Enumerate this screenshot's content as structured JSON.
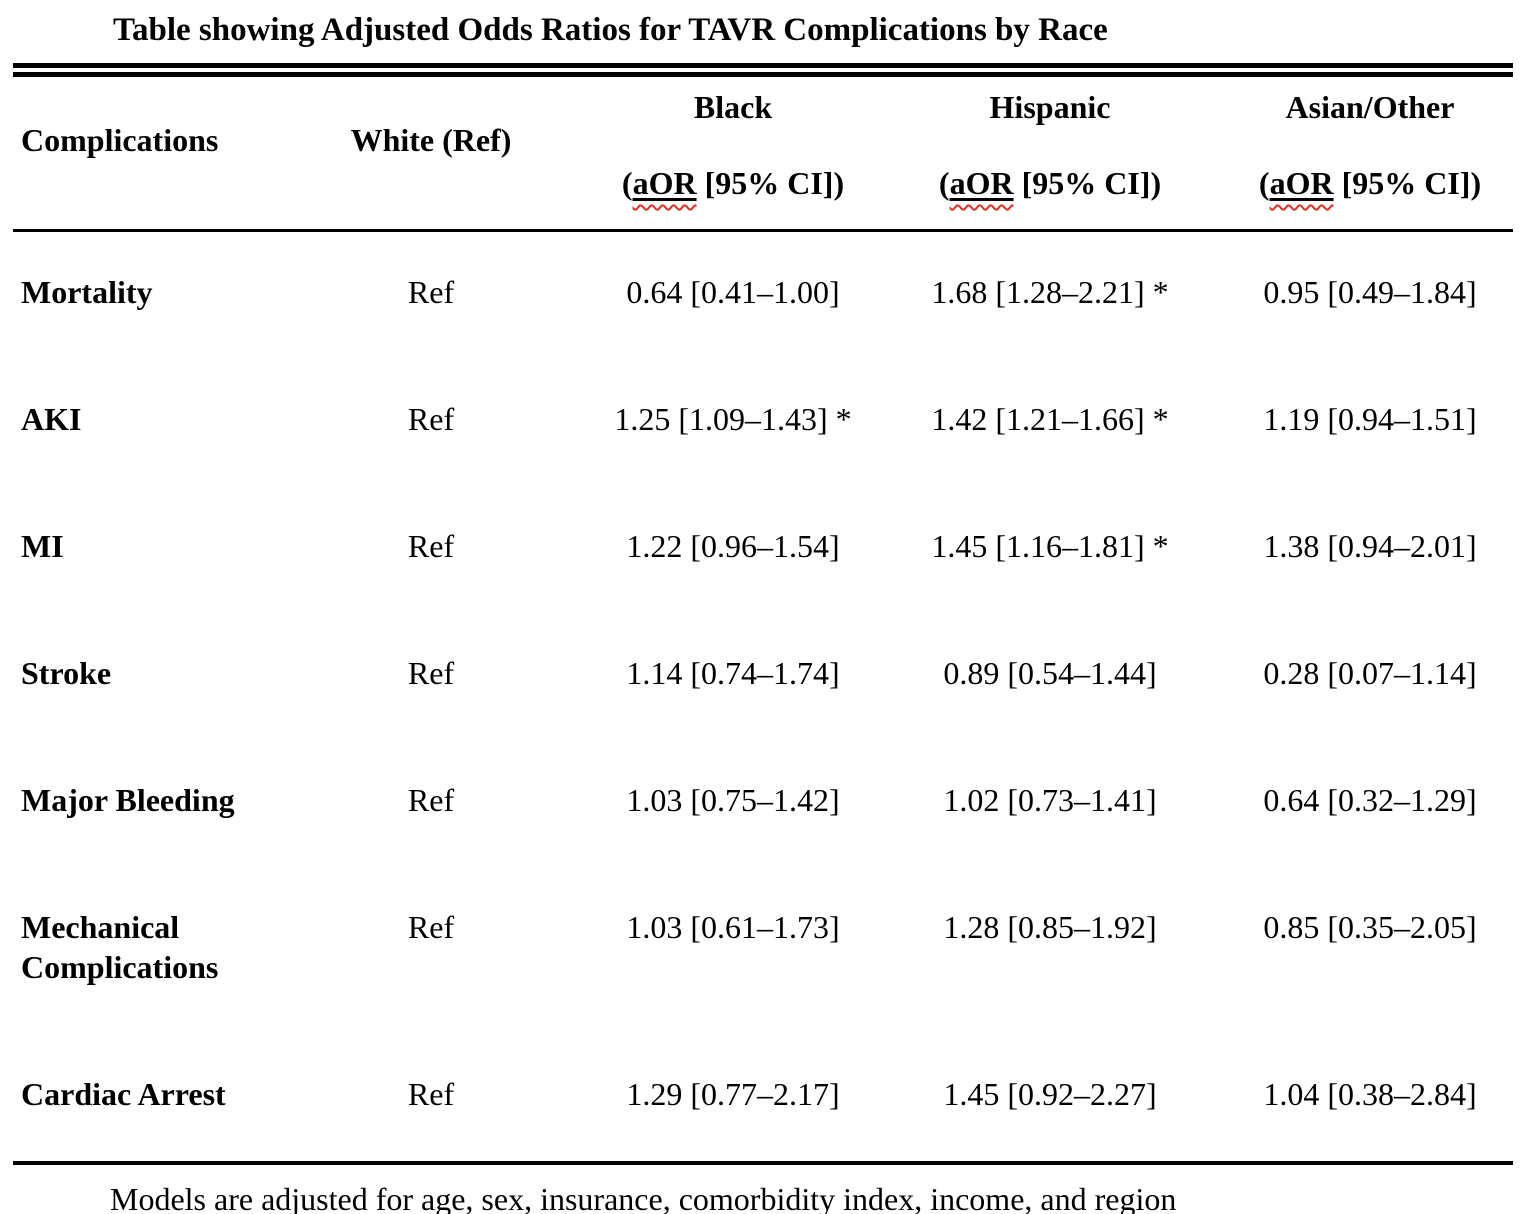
{
  "title": "Table showing Adjusted Odds Ratios for TAVR Complications by Race",
  "table": {
    "header": {
      "complications": "Complications",
      "white": "White (Ref)",
      "race_groups": [
        {
          "name": "Black",
          "measure_open": "(",
          "measure_term": "aOR",
          "measure_rest": " [95% CI])"
        },
        {
          "name": "Hispanic",
          "measure_open": "(",
          "measure_term": "aOR",
          "measure_rest": " [95% CI])"
        },
        {
          "name": "Asian/Other",
          "measure_open": "(",
          "measure_term": "aOR",
          "measure_rest": " [95% CI])"
        }
      ]
    },
    "rows": [
      {
        "complication": "Mortality",
        "white": "Ref",
        "black": "0.64 [0.41–1.00]",
        "hispanic": "1.68 [1.28–2.21] *",
        "asian_other": "0.95 [0.49–1.84]"
      },
      {
        "complication": "AKI",
        "white": "Ref",
        "black": "1.25 [1.09–1.43] *",
        "hispanic": "1.42 [1.21–1.66] *",
        "asian_other": "1.19 [0.94–1.51]"
      },
      {
        "complication": "MI",
        "white": "Ref",
        "black": "1.22 [0.96–1.54]",
        "hispanic": "1.45 [1.16–1.81] *",
        "asian_other": "1.38 [0.94–2.01]"
      },
      {
        "complication": "Stroke",
        "white": "Ref",
        "black": "1.14 [0.74–1.74]",
        "hispanic": "0.89 [0.54–1.44]",
        "asian_other": "0.28 [0.07–1.14]"
      },
      {
        "complication": "Major Bleeding",
        "white": "Ref",
        "black": "1.03 [0.75–1.42]",
        "hispanic": "1.02 [0.73–1.41]",
        "asian_other": "0.64 [0.32–1.29]"
      },
      {
        "complication": "Mechanical Complications",
        "white": "Ref",
        "black": "1.03 [0.61–1.73]",
        "hispanic": "1.28 [0.85–1.92]",
        "asian_other": "0.85 [0.35–2.05]"
      },
      {
        "complication": "Cardiac Arrest",
        "white": "Ref",
        "black": "1.29 [0.77–2.17]",
        "hispanic": "1.45 [0.92–2.27]",
        "asian_other": "1.04 [0.38–2.84]"
      }
    ]
  },
  "footnote": "Models are adjusted for age, sex, insurance, comorbidity index, income, and region",
  "colors": {
    "text": "#000000",
    "background": "#ffffff",
    "rules": "#000000",
    "spellcheck_underline": "#e0301e"
  }
}
